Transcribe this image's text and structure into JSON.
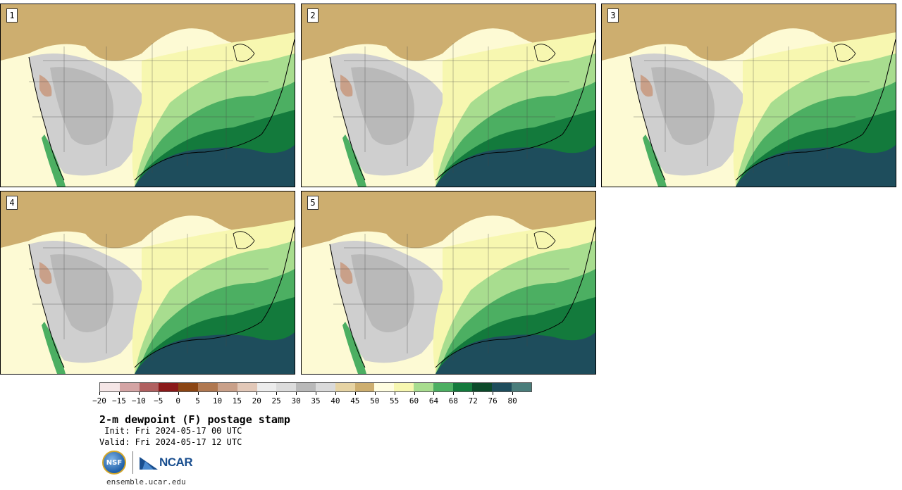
{
  "panels": [
    {
      "id": 1,
      "label": "1"
    },
    {
      "id": 2,
      "label": "2"
    },
    {
      "id": 3,
      "label": "3"
    },
    {
      "id": 4,
      "label": "4"
    },
    {
      "id": 5,
      "label": "5"
    }
  ],
  "colorbar": {
    "colors": [
      "#f5e6e6",
      "#d4a4a4",
      "#b06060",
      "#8b1a1a",
      "#8b4513",
      "#b07850",
      "#c9a089",
      "#e2c8b8",
      "#ececec",
      "#dcdcdc",
      "#b9b9b9",
      "#dadada",
      "#e6d3a3",
      "#cdae6f",
      "#fffde0",
      "#f7f7b0",
      "#a8dd8f",
      "#4caf62",
      "#137a3c",
      "#0c4a2a",
      "#1e4d5c",
      "#4a7d7b"
    ],
    "tick_labels": [
      "−20",
      "−15",
      "−10",
      "−5",
      "0",
      "5",
      "10",
      "15",
      "20",
      "25",
      "30",
      "35",
      "40",
      "45",
      "50",
      "55",
      "60",
      "64",
      "68",
      "72",
      "76",
      "80"
    ]
  },
  "title": "2-m dewpoint (F) postage stamp",
  "init_line": " Init: Fri 2024-05-17 00 UTC",
  "valid_line": "Valid: Fri 2024-05-17 12 UTC",
  "logos": {
    "nsf": "NSF",
    "ncar": "NCAR"
  },
  "url": "ensemble.ucar.edu"
}
